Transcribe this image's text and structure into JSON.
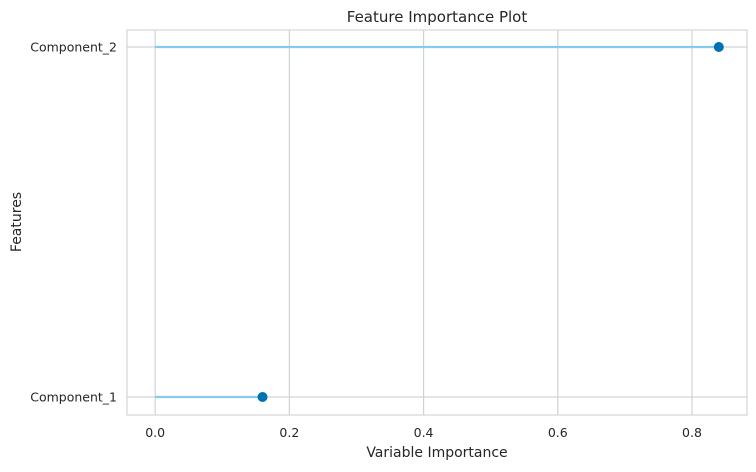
{
  "chart_data": {
    "type": "lollipop",
    "title": "Feature Importance Plot",
    "xlabel": "Variable Importance",
    "ylabel": "Features",
    "categories": [
      "Component_1",
      "Component_2"
    ],
    "values": [
      0.16,
      0.84
    ],
    "xlim": [
      -0.042,
      0.882
    ],
    "xticks": [
      0.0,
      0.2,
      0.4,
      0.6,
      0.8
    ],
    "xtick_labels": [
      "0.0",
      "0.2",
      "0.4",
      "0.6",
      "0.8"
    ],
    "grid": true,
    "colors": {
      "stem": "#86caf0",
      "marker": "#0072b2",
      "grid": "#d0d3d6",
      "spine": "#c9cdd1"
    }
  }
}
